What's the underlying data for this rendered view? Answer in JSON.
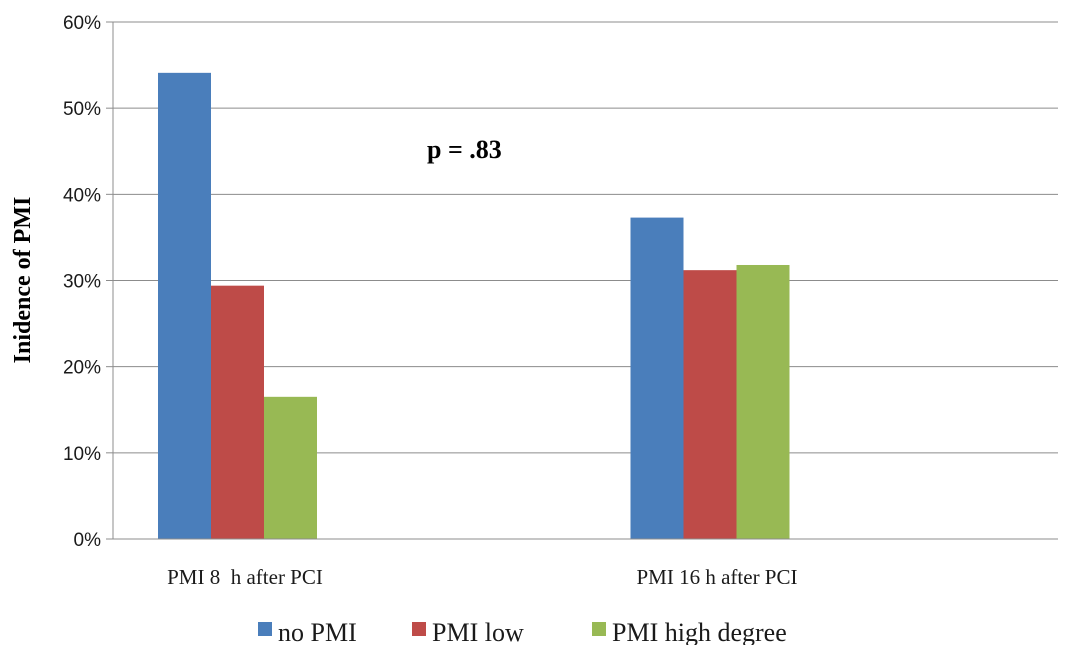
{
  "chart_data": {
    "type": "bar",
    "title": "",
    "xlabel": "",
    "ylabel": "Inidence of PMI",
    "ylim": [
      0,
      60
    ],
    "yticks": [
      "0%",
      "10%",
      "20%",
      "30%",
      "40%",
      "50%",
      "60%"
    ],
    "ytick_values": [
      0,
      10,
      20,
      30,
      40,
      50,
      60
    ],
    "categories": [
      "PMI 8  h after PCI",
      "PMI 16 h after PCI"
    ],
    "series": [
      {
        "name": "no PMI",
        "color": "#4a7ebb",
        "values": [
          54.1,
          37.3
        ]
      },
      {
        "name": "PMI low",
        "color": "#be4b48",
        "values": [
          29.4,
          31.2
        ]
      },
      {
        "name": "PMI high degree",
        "color": "#98b954",
        "values": [
          16.5,
          31.8
        ]
      }
    ],
    "annotation": "p = .83",
    "grid": true,
    "legend_position": "bottom"
  }
}
